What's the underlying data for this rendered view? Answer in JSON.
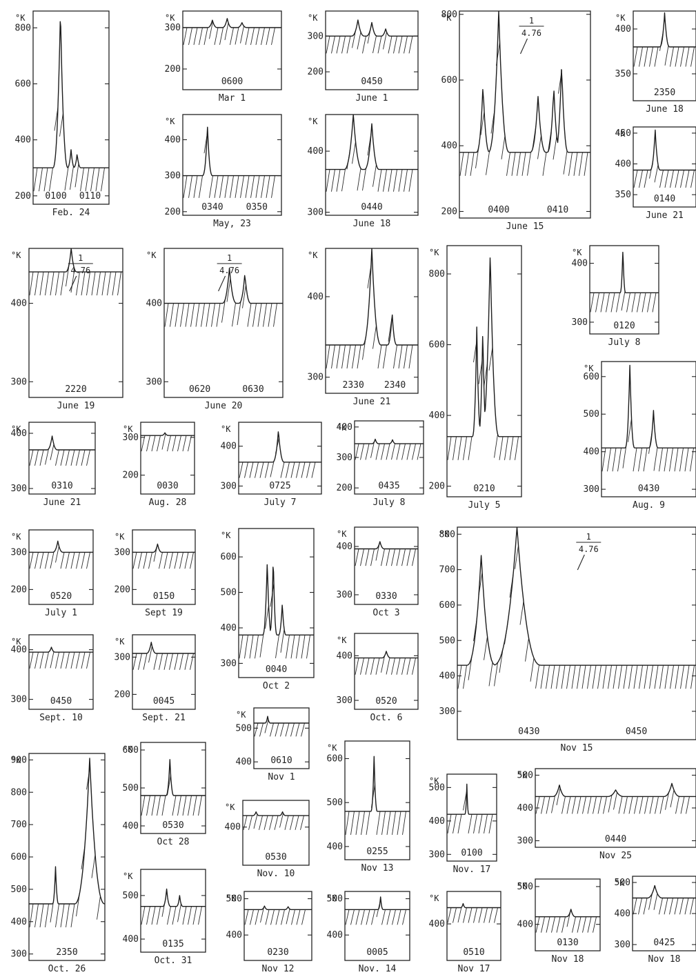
{
  "chart_data": [
    {
      "type": "line",
      "date": "Feb. 24",
      "time_label": "0100",
      "time_label_2": "0110",
      "unit": "°K",
      "yticks": [
        800,
        600,
        400,
        200
      ],
      "ylim": [
        170,
        860
      ],
      "base": 300,
      "spikes": [
        {
          "at": 0.36,
          "v": 860,
          "w": 0.1
        },
        {
          "at": 0.5,
          "v": 365,
          "w": 0.05
        },
        {
          "at": 0.58,
          "v": 350,
          "w": 0.05
        }
      ]
    },
    {
      "type": "line",
      "date": "Mar 1",
      "time_label": "0600",
      "unit": "°K",
      "yticks": [
        300,
        200
      ],
      "ylim": [
        150,
        340
      ],
      "base": 300,
      "spikes": [
        {
          "at": 0.3,
          "v": 318,
          "w": 0.05
        },
        {
          "at": 0.45,
          "v": 322,
          "w": 0.05
        },
        {
          "at": 0.6,
          "v": 312,
          "w": 0.05
        }
      ]
    },
    {
      "type": "line",
      "date": "June 1",
      "time_label": "0450",
      "unit": "°K",
      "yticks": [
        300,
        200
      ],
      "ylim": [
        150,
        370
      ],
      "base": 300,
      "spikes": [
        {
          "at": 0.35,
          "v": 345,
          "w": 0.07
        },
        {
          "at": 0.5,
          "v": 338,
          "w": 0.06
        },
        {
          "at": 0.65,
          "v": 320,
          "w": 0.05
        }
      ]
    },
    {
      "type": "line",
      "date": "June 15",
      "time_label": "0400",
      "time_label_2": "0410",
      "unit": "°K",
      "annotation": "1/4.76",
      "yticks": [
        800,
        600,
        400,
        200
      ],
      "ylim": [
        180,
        810
      ],
      "base": 380,
      "spikes": [
        {
          "at": 0.18,
          "v": 585,
          "w": 0.05
        },
        {
          "at": 0.3,
          "v": 810,
          "w": 0.08
        },
        {
          "at": 0.6,
          "v": 550,
          "w": 0.06
        },
        {
          "at": 0.72,
          "v": 580,
          "w": 0.05
        },
        {
          "at": 0.78,
          "v": 650,
          "w": 0.05
        }
      ]
    },
    {
      "type": "line",
      "date": "June 18",
      "time_label": "2350",
      "unit": "°K",
      "yticks": [
        400,
        350
      ],
      "ylim": [
        320,
        420
      ],
      "base": 380,
      "spikes": [
        {
          "at": 0.5,
          "v": 418,
          "w": 0.08
        }
      ]
    },
    {
      "type": "line",
      "date": "May, 23",
      "time_label": "0340",
      "time_label_2": "0350",
      "unit": "°K",
      "yticks": [
        400,
        300,
        200
      ],
      "ylim": [
        190,
        470
      ],
      "base": 300,
      "spikes": [
        {
          "at": 0.25,
          "v": 435,
          "w": 0.05
        }
      ]
    },
    {
      "type": "line",
      "date": "June 18",
      "time_label": "0440",
      "unit": "°K",
      "yticks": [
        400,
        300
      ],
      "ylim": [
        295,
        460
      ],
      "base": 370,
      "spikes": [
        {
          "at": 0.3,
          "v": 460,
          "w": 0.1
        },
        {
          "at": 0.5,
          "v": 445,
          "w": 0.08
        }
      ]
    },
    {
      "type": "line",
      "date": "June 21",
      "time_label": "0140",
      "unit": "°K",
      "yticks": [
        450,
        400,
        350
      ],
      "ylim": [
        330,
        460
      ],
      "base": 390,
      "spikes": [
        {
          "at": 0.35,
          "v": 455,
          "w": 0.08
        }
      ]
    },
    {
      "type": "line",
      "date": "June 19",
      "time_label": "2220",
      "unit": "°K",
      "annotation": "1/4.76",
      "yticks": [
        400,
        300
      ],
      "ylim": [
        280,
        470
      ],
      "base": 440,
      "spikes": [
        {
          "at": 0.45,
          "v": 470,
          "w": 0.06
        }
      ]
    },
    {
      "type": "line",
      "date": "June 20",
      "time_label": "0620",
      "time_label_2": "0630",
      "unit": "°K",
      "annotation": "1/4.76",
      "yticks": [
        400,
        300
      ],
      "ylim": [
        280,
        470
      ],
      "base": 400,
      "spikes": [
        {
          "at": 0.55,
          "v": 445,
          "w": 0.06
        },
        {
          "at": 0.68,
          "v": 438,
          "w": 0.05
        }
      ]
    },
    {
      "type": "line",
      "date": "June 21",
      "time_label": "2330",
      "time_label_2": "2340",
      "unit": "°K",
      "yticks": [
        400,
        300
      ],
      "ylim": [
        280,
        460
      ],
      "base": 340,
      "spikes": [
        {
          "at": 0.5,
          "v": 460,
          "w": 0.1
        },
        {
          "at": 0.72,
          "v": 380,
          "w": 0.05
        }
      ]
    },
    {
      "type": "line",
      "date": "July 5",
      "time_label": "0210",
      "unit": "°K",
      "yticks": [
        800,
        600,
        400,
        200
      ],
      "ylim": [
        170,
        880
      ],
      "base": 340,
      "spikes": [
        {
          "at": 0.4,
          "v": 650,
          "w": 0.06
        },
        {
          "at": 0.48,
          "v": 640,
          "w": 0.06
        },
        {
          "at": 0.58,
          "v": 860,
          "w": 0.12
        }
      ]
    },
    {
      "type": "line",
      "date": "July 8",
      "time_label": "0120",
      "unit": "°K",
      "yticks": [
        400,
        300
      ],
      "ylim": [
        280,
        430
      ],
      "base": 350,
      "spikes": [
        {
          "at": 0.48,
          "v": 425,
          "w": 0.04
        }
      ]
    },
    {
      "type": "line",
      "date": "Aug. 9",
      "time_label": "0430",
      "unit": "°K",
      "yticks": [
        600,
        500,
        400,
        300
      ],
      "ylim": [
        280,
        640
      ],
      "base": 410,
      "spikes": [
        {
          "at": 0.3,
          "v": 630,
          "w": 0.05
        },
        {
          "at": 0.55,
          "v": 510,
          "w": 0.05
        }
      ]
    },
    {
      "type": "line",
      "date": "June 21",
      "time_label": "0310",
      "unit": "°K",
      "yticks": [
        400,
        300
      ],
      "ylim": [
        290,
        420
      ],
      "base": 370,
      "spikes": [
        {
          "at": 0.35,
          "v": 395,
          "w": 0.08
        }
      ]
    },
    {
      "type": "line",
      "date": "Aug. 28",
      "time_label": "0030",
      "unit": "°K",
      "yticks": [
        300,
        200
      ],
      "ylim": [
        150,
        340
      ],
      "base": 305,
      "spikes": [
        {
          "at": 0.45,
          "v": 312,
          "w": 0.07
        }
      ]
    },
    {
      "type": "line",
      "date": "July 7",
      "time_label": "0725",
      "unit": "°K",
      "yticks": [
        400,
        300
      ],
      "ylim": [
        280,
        460
      ],
      "base": 360,
      "spikes": [
        {
          "at": 0.48,
          "v": 440,
          "w": 0.07
        }
      ]
    },
    {
      "type": "line",
      "date": "July 8",
      "time_label": "0435",
      "unit": "°K",
      "yticks": [
        400,
        300,
        200
      ],
      "ylim": [
        180,
        420
      ],
      "base": 345,
      "spikes": [
        {
          "at": 0.3,
          "v": 360,
          "w": 0.05
        },
        {
          "at": 0.55,
          "v": 358,
          "w": 0.05
        }
      ]
    },
    {
      "type": "line",
      "date": "July 1",
      "time_label": "0520",
      "unit": "°K",
      "yticks": [
        300,
        200
      ],
      "ylim": [
        160,
        360
      ],
      "base": 300,
      "spikes": [
        {
          "at": 0.45,
          "v": 330,
          "w": 0.08
        }
      ]
    },
    {
      "type": "line",
      "date": "Sept 19",
      "time_label": "0150",
      "unit": "°K",
      "yticks": [
        300,
        200
      ],
      "ylim": [
        160,
        360
      ],
      "base": 300,
      "spikes": [
        {
          "at": 0.4,
          "v": 322,
          "w": 0.07
        }
      ]
    },
    {
      "type": "line",
      "date": "Oct 2",
      "time_label": "0040",
      "unit": "°K",
      "yticks": [
        600,
        500,
        400,
        300
      ],
      "ylim": [
        260,
        680
      ],
      "base": 380,
      "spikes": [
        {
          "at": 0.38,
          "v": 590,
          "w": 0.06
        },
        {
          "at": 0.46,
          "v": 600,
          "w": 0.05
        },
        {
          "at": 0.58,
          "v": 470,
          "w": 0.05
        }
      ]
    },
    {
      "type": "line",
      "date": "Oct 3",
      "time_label": "0330",
      "unit": "°K",
      "yticks": [
        400,
        300
      ],
      "ylim": [
        280,
        440
      ],
      "base": 395,
      "spikes": [
        {
          "at": 0.4,
          "v": 410,
          "w": 0.07
        }
      ]
    },
    {
      "type": "line",
      "date": "Nov 15",
      "time_label": "0430",
      "time_label_2": "0450",
      "unit": "°K",
      "annotation": "1/4.76",
      "yticks": [
        800,
        700,
        600,
        500,
        400,
        300
      ],
      "ylim": [
        220,
        820
      ],
      "base": 430,
      "spikes": [
        {
          "at": 0.1,
          "v": 740,
          "w": 0.06
        },
        {
          "at": 0.25,
          "v": 820,
          "w": 0.1
        }
      ]
    },
    {
      "type": "line",
      "date": "Sept. 10",
      "time_label": "0450",
      "unit": "°K",
      "yticks": [
        400,
        300
      ],
      "ylim": [
        280,
        430
      ],
      "base": 395,
      "spikes": [
        {
          "at": 0.35,
          "v": 405,
          "w": 0.06
        }
      ]
    },
    {
      "type": "line",
      "date": "Sept. 21",
      "time_label": "0045",
      "unit": "°K",
      "yticks": [
        300,
        200
      ],
      "ylim": [
        160,
        360
      ],
      "base": 310,
      "spikes": [
        {
          "at": 0.3,
          "v": 340,
          "w": 0.08
        }
      ]
    },
    {
      "type": "line",
      "date": "Oct. 6",
      "time_label": "0520",
      "unit": "°K",
      "yticks": [
        400,
        300
      ],
      "ylim": [
        280,
        450
      ],
      "base": 395,
      "spikes": [
        {
          "at": 0.5,
          "v": 410,
          "w": 0.07
        }
      ]
    },
    {
      "type": "line",
      "date": "Nov 1",
      "time_label": "0610",
      "unit": "°K",
      "yticks": [
        500,
        400
      ],
      "ylim": [
        380,
        560
      ],
      "base": 515,
      "spikes": [
        {
          "at": 0.25,
          "v": 535,
          "w": 0.05
        }
      ]
    },
    {
      "type": "line",
      "date": "Oct. 26",
      "time_label": "2350",
      "unit": "°K",
      "yticks": [
        900,
        800,
        700,
        600,
        500,
        400,
        300
      ],
      "ylim": [
        280,
        920
      ],
      "base": 455,
      "spikes": [
        {
          "at": 0.35,
          "v": 570,
          "w": 0.04
        },
        {
          "at": 0.8,
          "v": 905,
          "w": 0.2
        }
      ]
    },
    {
      "type": "line",
      "date": "Oct 28",
      "time_label": "0530",
      "unit": "°K",
      "yticks": [
        600,
        500,
        400
      ],
      "ylim": [
        380,
        620
      ],
      "base": 480,
      "spikes": [
        {
          "at": 0.45,
          "v": 575,
          "w": 0.06
        }
      ]
    },
    {
      "type": "line",
      "date": "Nov. 10",
      "time_label": "0530",
      "unit": "°K",
      "yticks": [
        400
      ],
      "ylim": [
        300,
        470
      ],
      "base": 430,
      "spikes": [
        {
          "at": 0.2,
          "v": 440,
          "w": 0.05
        },
        {
          "at": 0.6,
          "v": 440,
          "w": 0.05
        }
      ]
    },
    {
      "type": "line",
      "date": "Nov 13",
      "time_label": "0255",
      "unit": "°K",
      "yticks": [
        600,
        500,
        400
      ],
      "ylim": [
        370,
        640
      ],
      "base": 480,
      "spikes": [
        {
          "at": 0.45,
          "v": 605,
          "w": 0.05
        }
      ]
    },
    {
      "type": "line",
      "date": "Nov. 17",
      "time_label": "0100",
      "unit": "°K",
      "yticks": [
        500,
        400,
        300
      ],
      "ylim": [
        280,
        540
      ],
      "base": 420,
      "spikes": [
        {
          "at": 0.4,
          "v": 510,
          "w": 0.04
        }
      ]
    },
    {
      "type": "line",
      "date": "Nov 25",
      "time_label": "0440",
      "unit": "°K",
      "yticks": [
        500,
        400,
        300
      ],
      "ylim": [
        280,
        520
      ],
      "base": 435,
      "spikes": [
        {
          "at": 0.15,
          "v": 470,
          "w": 0.04
        },
        {
          "at": 0.5,
          "v": 455,
          "w": 0.05
        },
        {
          "at": 0.85,
          "v": 475,
          "w": 0.05
        }
      ]
    },
    {
      "type": "line",
      "date": "Oct. 31",
      "time_label": "0135",
      "unit": "°K",
      "yticks": [
        500,
        400
      ],
      "ylim": [
        370,
        560
      ],
      "base": 475,
      "spikes": [
        {
          "at": 0.4,
          "v": 515,
          "w": 0.06
        },
        {
          "at": 0.6,
          "v": 500,
          "w": 0.05
        }
      ]
    },
    {
      "type": "line",
      "date": "Nov 12",
      "time_label": "0230",
      "unit": "°K",
      "yticks": [
        500,
        400
      ],
      "ylim": [
        330,
        520
      ],
      "base": 470,
      "spikes": [
        {
          "at": 0.3,
          "v": 480,
          "w": 0.05
        },
        {
          "at": 0.65,
          "v": 478,
          "w": 0.05
        }
      ]
    },
    {
      "type": "line",
      "date": "Nov. 14",
      "time_label": "0005",
      "unit": "°K",
      "yticks": [
        500,
        400
      ],
      "ylim": [
        330,
        520
      ],
      "base": 470,
      "spikes": [
        {
          "at": 0.55,
          "v": 505,
          "w": 0.04
        }
      ]
    },
    {
      "type": "line",
      "date": "Nov 17",
      "time_label": "0510",
      "unit": "°K",
      "yticks": [
        400
      ],
      "ylim": [
        310,
        480
      ],
      "base": 440,
      "spikes": [
        {
          "at": 0.3,
          "v": 450,
          "w": 0.05
        }
      ]
    },
    {
      "type": "line",
      "date": "Nov 18",
      "time_label": "0130",
      "unit": "°K",
      "yticks": [
        500,
        400
      ],
      "ylim": [
        330,
        520
      ],
      "base": 420,
      "spikes": [
        {
          "at": 0.55,
          "v": 440,
          "w": 0.07
        }
      ]
    },
    {
      "type": "line",
      "date": "Nov 18",
      "time_label": "0425",
      "unit": "°K",
      "yticks": [
        500,
        400,
        300
      ],
      "ylim": [
        280,
        520
      ],
      "base": 450,
      "spikes": [
        {
          "at": 0.35,
          "v": 490,
          "w": 0.12
        }
      ]
    }
  ]
}
